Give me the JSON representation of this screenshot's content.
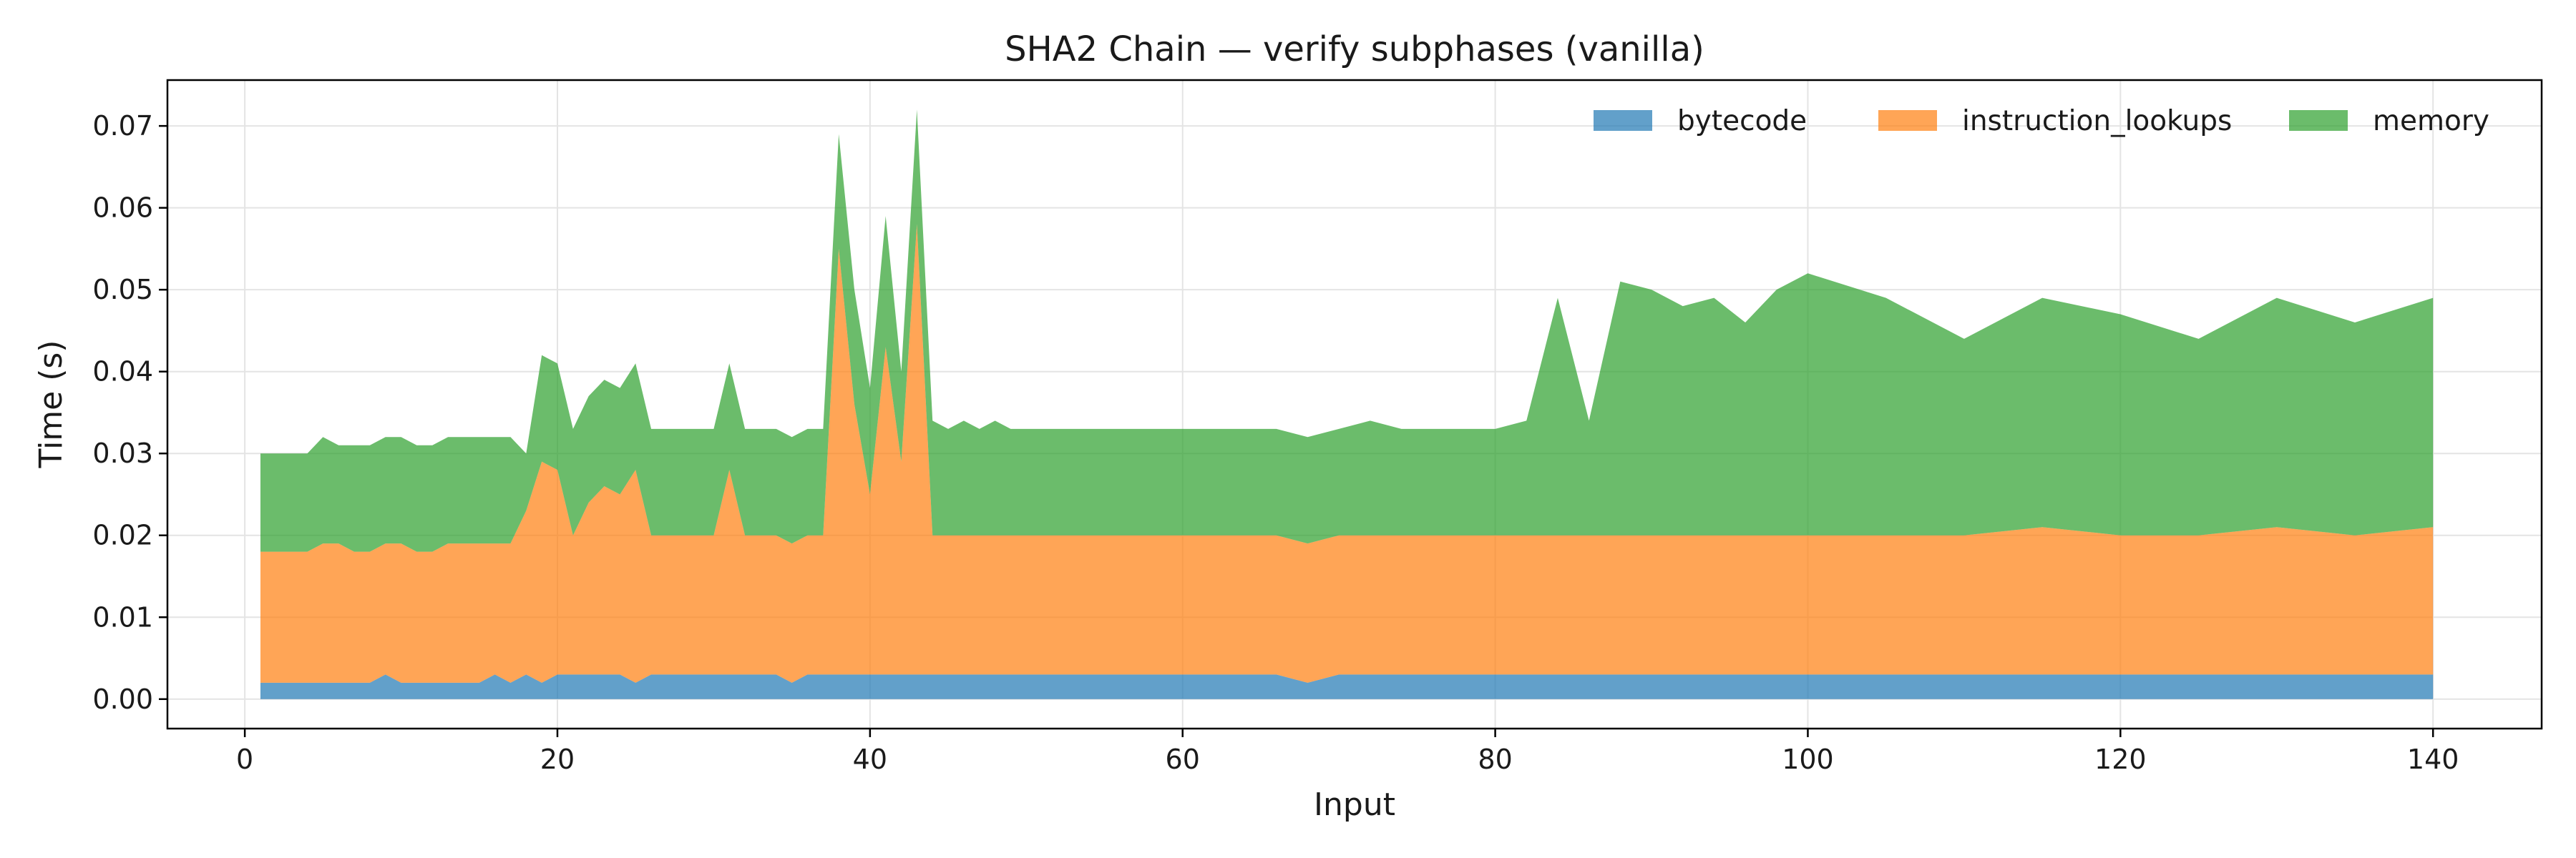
{
  "chart_data": {
    "type": "area",
    "stacked": true,
    "title": "SHA2 Chain — verify subphases (vanilla)",
    "xlabel": "Input",
    "ylabel": "Time (s)",
    "xlim": [
      -4.95,
      146.95
    ],
    "ylim": [
      -0.0036,
      0.0756
    ],
    "x_ticks": [
      0,
      20,
      40,
      60,
      80,
      100,
      120,
      140
    ],
    "x_tick_labels": [
      "0",
      "20",
      "40",
      "60",
      "80",
      "100",
      "120",
      "140"
    ],
    "y_ticks": [
      0.0,
      0.01,
      0.02,
      0.03,
      0.04,
      0.05,
      0.06,
      0.07
    ],
    "y_tick_labels": [
      "0.00",
      "0.01",
      "0.02",
      "0.03",
      "0.04",
      "0.05",
      "0.06",
      "0.07"
    ],
    "grid": true,
    "legend_position": "top-right",
    "x": [
      1,
      2,
      3,
      4,
      5,
      6,
      7,
      8,
      9,
      10,
      11,
      12,
      13,
      14,
      15,
      16,
      17,
      18,
      19,
      20,
      21,
      22,
      23,
      24,
      25,
      26,
      27,
      28,
      29,
      30,
      31,
      32,
      33,
      34,
      35,
      36,
      37,
      38,
      39,
      40,
      41,
      42,
      43,
      44,
      45,
      46,
      47,
      48,
      49,
      50,
      52,
      54,
      56,
      58,
      60,
      62,
      64,
      66,
      68,
      70,
      72,
      74,
      76,
      78,
      80,
      82,
      84,
      86,
      88,
      90,
      92,
      94,
      96,
      98,
      100,
      105,
      110,
      115,
      120,
      125,
      130,
      135,
      140
    ],
    "series": [
      {
        "name": "bytecode",
        "color": "#1f77b4",
        "values": [
          0.002,
          0.002,
          0.002,
          0.002,
          0.002,
          0.002,
          0.002,
          0.002,
          0.003,
          0.002,
          0.002,
          0.002,
          0.002,
          0.002,
          0.002,
          0.003,
          0.002,
          0.003,
          0.002,
          0.003,
          0.003,
          0.003,
          0.003,
          0.003,
          0.002,
          0.003,
          0.003,
          0.003,
          0.003,
          0.003,
          0.003,
          0.003,
          0.003,
          0.003,
          0.002,
          0.003,
          0.003,
          0.003,
          0.003,
          0.003,
          0.003,
          0.003,
          0.003,
          0.003,
          0.003,
          0.003,
          0.003,
          0.003,
          0.003,
          0.003,
          0.003,
          0.003,
          0.003,
          0.003,
          0.003,
          0.003,
          0.003,
          0.003,
          0.002,
          0.003,
          0.003,
          0.003,
          0.003,
          0.003,
          0.003,
          0.003,
          0.003,
          0.003,
          0.003,
          0.003,
          0.003,
          0.003,
          0.003,
          0.003,
          0.003,
          0.003,
          0.003,
          0.003,
          0.003,
          0.003,
          0.003,
          0.003,
          0.003
        ]
      },
      {
        "name": "instruction_lookups",
        "color": "#ff7f0e",
        "values": [
          0.016,
          0.016,
          0.016,
          0.016,
          0.017,
          0.017,
          0.016,
          0.016,
          0.016,
          0.017,
          0.016,
          0.016,
          0.017,
          0.017,
          0.017,
          0.016,
          0.017,
          0.02,
          0.027,
          0.025,
          0.017,
          0.021,
          0.023,
          0.022,
          0.026,
          0.017,
          0.017,
          0.017,
          0.017,
          0.017,
          0.025,
          0.017,
          0.017,
          0.017,
          0.017,
          0.017,
          0.017,
          0.052,
          0.033,
          0.022,
          0.04,
          0.026,
          0.055,
          0.017,
          0.017,
          0.017,
          0.017,
          0.017,
          0.017,
          0.017,
          0.017,
          0.017,
          0.017,
          0.017,
          0.017,
          0.017,
          0.017,
          0.017,
          0.017,
          0.017,
          0.017,
          0.017,
          0.017,
          0.017,
          0.017,
          0.017,
          0.017,
          0.017,
          0.017,
          0.017,
          0.017,
          0.017,
          0.017,
          0.017,
          0.017,
          0.017,
          0.017,
          0.018,
          0.017,
          0.017,
          0.018,
          0.017,
          0.018
        ]
      },
      {
        "name": "memory",
        "color": "#2ca02c",
        "values": [
          0.012,
          0.012,
          0.012,
          0.012,
          0.013,
          0.012,
          0.013,
          0.013,
          0.013,
          0.013,
          0.013,
          0.013,
          0.013,
          0.013,
          0.013,
          0.013,
          0.013,
          0.007,
          0.013,
          0.013,
          0.013,
          0.013,
          0.013,
          0.013,
          0.013,
          0.013,
          0.013,
          0.013,
          0.013,
          0.013,
          0.013,
          0.013,
          0.013,
          0.013,
          0.013,
          0.013,
          0.013,
          0.014,
          0.014,
          0.013,
          0.016,
          0.011,
          0.014,
          0.014,
          0.013,
          0.014,
          0.013,
          0.014,
          0.013,
          0.013,
          0.013,
          0.013,
          0.013,
          0.013,
          0.013,
          0.013,
          0.013,
          0.013,
          0.013,
          0.013,
          0.014,
          0.013,
          0.013,
          0.013,
          0.013,
          0.014,
          0.029,
          0.014,
          0.031,
          0.03,
          0.028,
          0.029,
          0.026,
          0.03,
          0.032,
          0.029,
          0.024,
          0.028,
          0.027,
          0.024,
          0.028,
          0.026,
          0.028
        ]
      }
    ]
  }
}
